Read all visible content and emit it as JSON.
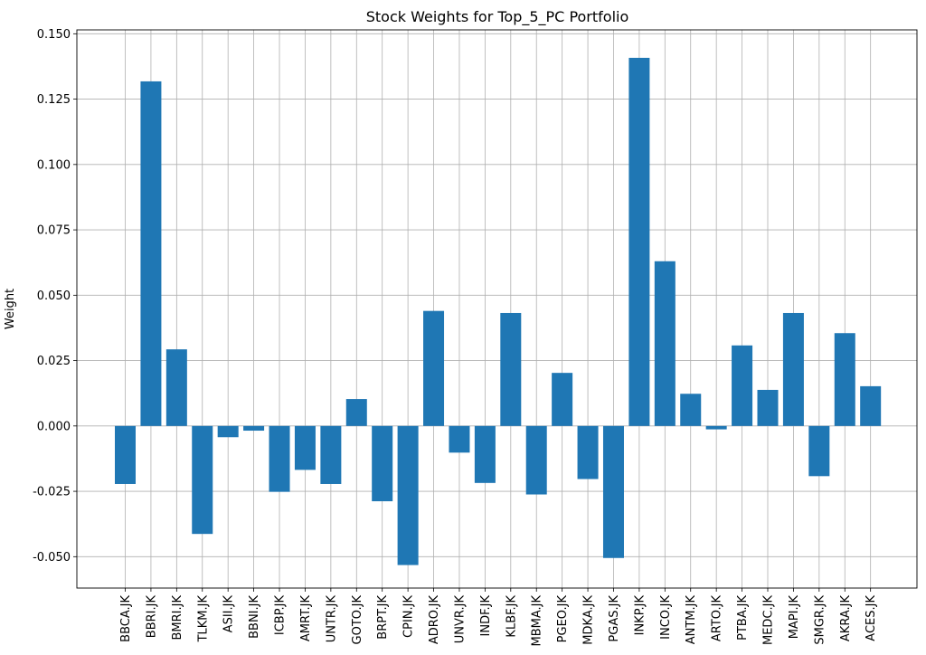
{
  "chart_data": {
    "type": "bar",
    "title": "Stock Weights for Top_5_PC Portfolio",
    "xlabel": "",
    "ylabel": "Weight",
    "ylim": [
      -0.062,
      0.1515
    ],
    "yticks": [
      "-0.050",
      "-0.025",
      "0.000",
      "0.025",
      "0.050",
      "0.075",
      "0.100",
      "0.125",
      "0.150"
    ],
    "ytick_values": [
      -0.05,
      -0.025,
      0.0,
      0.025,
      0.05,
      0.075,
      0.1,
      0.125,
      0.15
    ],
    "grid": true,
    "bar_color": "#1f77b4",
    "grid_color": "#b0b0b0",
    "categories": [
      "BBCA.JK",
      "BBRI.JK",
      "BMRI.JK",
      "TLKM.JK",
      "ASII.JK",
      "BBNI.JK",
      "ICBP.JK",
      "AMRT.JK",
      "UNTR.JK",
      "GOTO.JK",
      "BRPT.JK",
      "CPIN.JK",
      "ADRO.JK",
      "UNVR.JK",
      "INDF.JK",
      "KLBF.JK",
      "MBMA.JK",
      "PGEO.JK",
      "MDKA.JK",
      "PGAS.JK",
      "INKP.JK",
      "INCO.JK",
      "ANTM.JK",
      "ARTO.JK",
      "PTBA.JK",
      "MEDC.JK",
      "MAPI.JK",
      "SMGR.JK",
      "AKRA.JK",
      "ACES.JK"
    ],
    "values": [
      -0.0222,
      0.1318,
      0.0293,
      -0.0413,
      -0.0043,
      -0.0018,
      -0.0252,
      -0.0168,
      -0.0222,
      0.0103,
      -0.0288,
      -0.0532,
      0.044,
      -0.0102,
      -0.0218,
      0.0432,
      -0.0262,
      0.0203,
      -0.0203,
      -0.0505,
      0.1408,
      0.063,
      0.0123,
      -0.0013,
      0.0308,
      0.0138,
      0.0432,
      -0.0192,
      0.0355,
      0.0152
    ]
  }
}
